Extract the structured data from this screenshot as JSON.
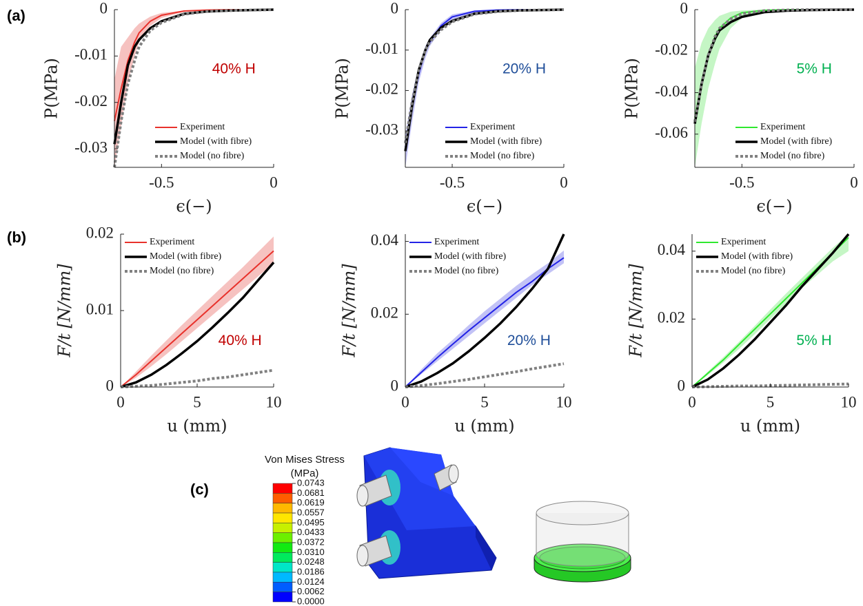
{
  "panel_labels": [
    "(a)",
    "(b)",
    "(c)"
  ],
  "chart_data": [
    {
      "type": "line",
      "annotation": "40% H",
      "annotation_color": "#c00000",
      "xlabel": "ϵ(−)",
      "ylabel": "P(MPa)",
      "x": [
        -0.71,
        -0.68,
        -0.65,
        -0.62,
        -0.6,
        -0.55,
        -0.5,
        -0.4,
        -0.3,
        -0.2,
        -0.1,
        0
      ],
      "xlim": [
        -0.71,
        0
      ],
      "xticks": [
        -0.5,
        0
      ],
      "ylim": [
        -0.034,
        0
      ],
      "yticks": [
        -0.03,
        -0.02,
        -0.01,
        0
      ],
      "legend": "lower right",
      "series": [
        {
          "name": "Experiment",
          "color": "#e8312b",
          "line_style": "solid",
          "band_color": "#f4b3b0",
          "values": [
            -0.024,
            -0.017,
            -0.011,
            -0.007,
            -0.005,
            -0.0025,
            -0.0012,
            -0.0003,
            -0.0001,
            0,
            0,
            0
          ],
          "band_lower": [
            -0.034,
            -0.025,
            -0.016,
            -0.01,
            -0.007,
            -0.0035,
            -0.0018,
            -0.0005,
            -0.0001,
            0,
            0,
            0
          ],
          "band_upper": [
            -0.015,
            -0.008,
            -0.006,
            -0.004,
            -0.003,
            -0.0015,
            -0.0007,
            -0.0002,
            0,
            0,
            0,
            0
          ]
        },
        {
          "name": "Model (with fibre)",
          "color": "#000000",
          "line_style": "solid",
          "values": [
            -0.029,
            -0.02,
            -0.012,
            -0.008,
            -0.0065,
            -0.004,
            -0.0025,
            -0.0009,
            -0.0004,
            -0.0002,
            -0.0001,
            0
          ]
        },
        {
          "name": "Model (no fibre)",
          "color": "#808080",
          "line_style": "dotted",
          "values": [
            -0.034,
            -0.024,
            -0.016,
            -0.011,
            -0.008,
            -0.0045,
            -0.0028,
            -0.001,
            -0.0004,
            -0.0002,
            -0.0001,
            0
          ]
        }
      ]
    },
    {
      "type": "line",
      "annotation": "20% H",
      "annotation_color": "#1f4e99",
      "xlabel": "ϵ(−)",
      "ylabel": "P(MPa)",
      "x": [
        -0.71,
        -0.68,
        -0.65,
        -0.62,
        -0.6,
        -0.55,
        -0.5,
        -0.4,
        -0.3,
        -0.2,
        -0.1,
        0
      ],
      "xlim": [
        -0.71,
        0
      ],
      "xticks": [
        -0.5,
        0
      ],
      "ylim": [
        -0.039,
        0
      ],
      "yticks": [
        -0.03,
        -0.02,
        -0.01,
        0
      ],
      "legend": "lower right",
      "series": [
        {
          "name": "Experiment",
          "color": "#2323e6",
          "line_style": "solid",
          "band_color": "#b3b3f4",
          "values": [
            -0.034,
            -0.024,
            -0.016,
            -0.01,
            -0.008,
            -0.004,
            -0.0018,
            -0.0004,
            -0.0001,
            0,
            0,
            0
          ],
          "band_lower": [
            -0.039,
            -0.028,
            -0.018,
            -0.012,
            -0.009,
            -0.005,
            -0.0025,
            -0.0007,
            -0.0002,
            0,
            0,
            0
          ],
          "band_upper": [
            -0.031,
            -0.021,
            -0.014,
            -0.009,
            -0.007,
            -0.0033,
            -0.0012,
            -0.0002,
            0,
            0,
            0,
            0
          ]
        },
        {
          "name": "Model (with fibre)",
          "color": "#000000",
          "line_style": "solid",
          "values": [
            -0.035,
            -0.024,
            -0.015,
            -0.01,
            -0.0075,
            -0.0045,
            -0.0028,
            -0.001,
            -0.0004,
            -0.0002,
            -0.0001,
            0
          ]
        },
        {
          "name": "Model (no fibre)",
          "color": "#808080",
          "line_style": "dotted",
          "values": [
            -0.033,
            -0.023,
            -0.015,
            -0.01,
            -0.008,
            -0.005,
            -0.003,
            -0.0011,
            -0.0005,
            -0.0002,
            -0.0001,
            0
          ]
        }
      ]
    },
    {
      "type": "line",
      "annotation": "5% H",
      "annotation_color": "#00b050",
      "xlabel": "ϵ(−)",
      "ylabel": "P(MPa)",
      "x": [
        -0.71,
        -0.68,
        -0.65,
        -0.62,
        -0.6,
        -0.55,
        -0.5,
        -0.4,
        -0.3,
        -0.2,
        -0.1,
        0
      ],
      "xlim": [
        -0.71,
        0
      ],
      "xticks": [
        -0.5,
        0
      ],
      "ylim": [
        -0.076,
        0
      ],
      "yticks": [
        -0.06,
        -0.04,
        -0.02,
        0
      ],
      "legend": "lower right",
      "series": [
        {
          "name": "Experiment",
          "color": "#2ee82e",
          "line_style": "solid",
          "band_color": "#b6f4b6",
          "values": [
            -0.052,
            -0.035,
            -0.022,
            -0.013,
            -0.009,
            -0.004,
            -0.0015,
            -0.0003,
            0,
            0,
            0,
            0
          ],
          "band_lower": [
            -0.076,
            -0.055,
            -0.038,
            -0.026,
            -0.019,
            -0.009,
            -0.004,
            -0.001,
            -0.0002,
            0,
            0,
            0
          ],
          "band_upper": [
            -0.028,
            -0.016,
            -0.009,
            -0.005,
            -0.003,
            -0.001,
            -0.0004,
            0,
            0,
            0,
            0,
            0
          ]
        },
        {
          "name": "Model (with fibre)",
          "color": "#000000",
          "line_style": "solid",
          "values": [
            -0.055,
            -0.036,
            -0.022,
            -0.014,
            -0.01,
            -0.006,
            -0.0035,
            -0.0012,
            -0.0005,
            -0.0002,
            -0.0001,
            0
          ]
        },
        {
          "name": "Model (no fibre)",
          "color": "#808080",
          "line_style": "dotted",
          "values": [
            -0.054,
            -0.036,
            -0.022,
            -0.013,
            -0.009,
            -0.0045,
            -0.002,
            -0.0005,
            -0.0002,
            0,
            0,
            0
          ]
        }
      ]
    },
    {
      "type": "line",
      "annotation": "40% H",
      "annotation_color": "#c00000",
      "xlabel": "u (mm)",
      "ylabel": "F/t [N/mm]",
      "x": [
        0,
        1,
        2,
        3,
        4,
        5,
        6,
        7,
        8,
        9,
        10
      ],
      "xlim": [
        0,
        10
      ],
      "xticks": [
        0,
        5,
        10
      ],
      "ylim": [
        0,
        0.02
      ],
      "yticks": [
        0,
        0.01,
        0.02
      ],
      "legend": "upper left",
      "series": [
        {
          "name": "Experiment",
          "color": "#e8312b",
          "line_style": "solid",
          "band_color": "#f4b3b0",
          "values": [
            0,
            0.0016,
            0.0034,
            0.0052,
            0.007,
            0.0088,
            0.0106,
            0.0124,
            0.0142,
            0.016,
            0.0178
          ],
          "band_lower": [
            0,
            0.0012,
            0.0027,
            0.0043,
            0.006,
            0.0077,
            0.0094,
            0.0111,
            0.0128,
            0.0145,
            0.0162
          ],
          "band_upper": [
            0,
            0.002,
            0.0041,
            0.0061,
            0.0081,
            0.01,
            0.0119,
            0.0138,
            0.0157,
            0.0177,
            0.0197
          ]
        },
        {
          "name": "Model (with fibre)",
          "color": "#000000",
          "line_style": "solid",
          "values": [
            0,
            0.0006,
            0.0016,
            0.0029,
            0.0044,
            0.006,
            0.0078,
            0.0097,
            0.0117,
            0.014,
            0.0163
          ]
        },
        {
          "name": "Model (no fibre)",
          "color": "#808080",
          "line_style": "dotted",
          "values": [
            0,
            0.0001,
            0.0002,
            0.0004,
            0.0006,
            0.0008,
            0.0011,
            0.0013,
            0.0016,
            0.0019,
            0.0022
          ]
        }
      ]
    },
    {
      "type": "line",
      "annotation": "20% H",
      "annotation_color": "#1f4e99",
      "xlabel": "u (mm)",
      "ylabel": "F/t [N/mm]",
      "x": [
        0,
        1,
        2,
        3,
        4,
        5,
        6,
        7,
        8,
        9,
        10
      ],
      "xlim": [
        0,
        10
      ],
      "xticks": [
        0,
        5,
        10
      ],
      "ylim": [
        0,
        0.042
      ],
      "yticks": [
        0,
        0.02,
        0.04
      ],
      "legend": "upper left",
      "series": [
        {
          "name": "Experiment",
          "color": "#2323e6",
          "line_style": "solid",
          "band_color": "#b3b3f4",
          "values": [
            0,
            0.004,
            0.008,
            0.0118,
            0.0155,
            0.019,
            0.0225,
            0.026,
            0.029,
            0.0325,
            0.0355
          ],
          "band_lower": [
            0,
            0.0035,
            0.007,
            0.0105,
            0.014,
            0.0175,
            0.021,
            0.0245,
            0.028,
            0.031,
            0.034
          ],
          "band_upper": [
            0,
            0.0048,
            0.0092,
            0.013,
            0.017,
            0.0208,
            0.0243,
            0.0278,
            0.031,
            0.034,
            0.0375
          ]
        },
        {
          "name": "Model (with fibre)",
          "color": "#000000",
          "line_style": "solid",
          "values": [
            0,
            0.0015,
            0.0038,
            0.0065,
            0.0098,
            0.0135,
            0.0175,
            0.022,
            0.027,
            0.0325,
            0.042
          ]
        },
        {
          "name": "Model (no fibre)",
          "color": "#808080",
          "line_style": "dotted",
          "values": [
            0,
            0.0004,
            0.0009,
            0.0015,
            0.0021,
            0.0028,
            0.0035,
            0.0042,
            0.005,
            0.0057,
            0.0064
          ]
        }
      ]
    },
    {
      "type": "line",
      "annotation": "5% H",
      "annotation_color": "#00b050",
      "xlabel": "u (mm)",
      "ylabel": "F/t [N/mm]",
      "x": [
        0,
        1,
        2,
        3,
        4,
        5,
        6,
        7,
        8,
        9,
        10
      ],
      "xlim": [
        0,
        10
      ],
      "xticks": [
        0,
        5,
        10
      ],
      "ylim": [
        0,
        0.045
      ],
      "yticks": [
        0,
        0.02,
        0.04
      ],
      "legend": "upper left",
      "series": [
        {
          "name": "Experiment",
          "color": "#2ee82e",
          "line_style": "solid",
          "band_color": "#b6f4b6",
          "values": [
            0,
            0.004,
            0.008,
            0.0125,
            0.017,
            0.0215,
            0.026,
            0.0305,
            0.035,
            0.0395,
            0.044
          ],
          "band_lower": [
            0,
            0.0035,
            0.0072,
            0.0112,
            0.0155,
            0.02,
            0.0245,
            0.029,
            0.033,
            0.037,
            0.04
          ],
          "band_upper": [
            0,
            0.0045,
            0.0088,
            0.0133,
            0.018,
            0.0228,
            0.0275,
            0.032,
            0.0365,
            0.041,
            0.045
          ]
        },
        {
          "name": "Model (with fibre)",
          "color": "#000000",
          "line_style": "solid",
          "values": [
            0,
            0.0022,
            0.0055,
            0.0095,
            0.014,
            0.019,
            0.024,
            0.0295,
            0.0345,
            0.0395,
            0.045
          ]
        },
        {
          "name": "Model (no fibre)",
          "color": "#808080",
          "line_style": "dotted",
          "values": [
            0,
            0.0001,
            0.0002,
            0.0003,
            0.0003,
            0.0004,
            0.0005,
            0.0006,
            0.0007,
            0.0008,
            0.0009
          ]
        }
      ]
    }
  ],
  "colorbar": {
    "title": [
      "Von Mises Stress",
      "(MPa)"
    ],
    "ticks": [
      0.0743,
      0.0681,
      0.0619,
      0.0557,
      0.0495,
      0.0433,
      0.0372,
      {
        "value": 0.031,
        "label": "0.0310"
      },
      0.0248,
      0.0186,
      0.0124,
      0.0062,
      {
        "value": 0,
        "label": "0.0000"
      }
    ],
    "colors": [
      "#ff0000",
      "#ff5d00",
      "#ffb900",
      "#ffe600",
      "#c7f000",
      "#6cf000",
      "#12ea12",
      "#00ea5d",
      "#00e6c8",
      "#00b9ff",
      "#005dff",
      "#0000ff"
    ]
  }
}
